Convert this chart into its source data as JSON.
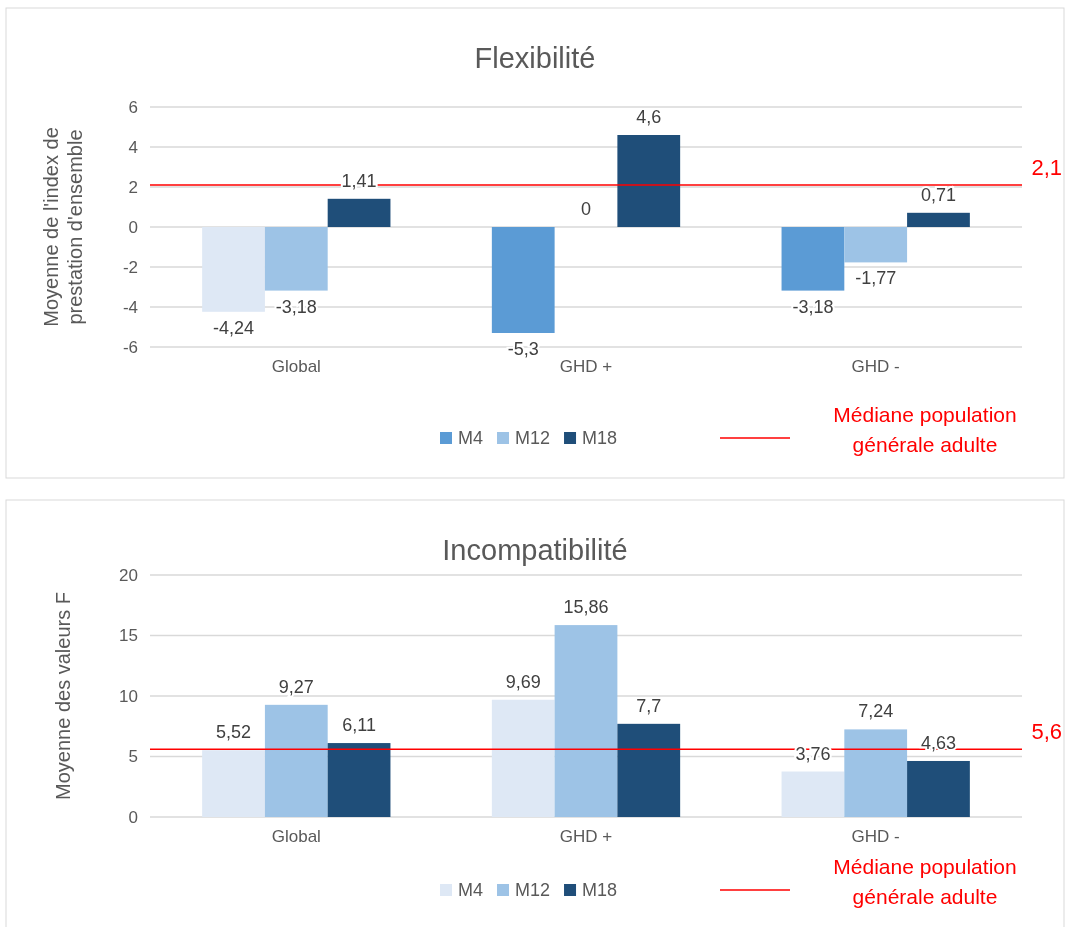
{
  "chart_data": [
    {
      "type": "bar",
      "title": "Flexibilité",
      "ylabel": "Moyenne  de l'index de prestation d'ensemble",
      "categories": [
        "Global",
        "GHD +",
        "GHD -"
      ],
      "series": [
        {
          "name": "M4",
          "color": "#5b9bd5",
          "colors": [
            "#dee8f5",
            "#5b9bd5",
            "#5b9bd5"
          ],
          "values": [
            -4.24,
            -5.3,
            -3.18
          ],
          "value_labels": [
            "-4,24",
            "-5,3",
            "-3,18"
          ]
        },
        {
          "name": "M12",
          "color": "#9dc3e6",
          "values": [
            -3.18,
            0,
            -1.77
          ],
          "value_labels": [
            "-3,18",
            "0",
            "-1,77"
          ]
        },
        {
          "name": "M18",
          "color": "#1f4e79",
          "values": [
            1.41,
            4.6,
            0.71
          ],
          "value_labels": [
            "1,41",
            "4,6",
            "0,71"
          ]
        }
      ],
      "ylim": [
        -6,
        6
      ],
      "yticks": [
        -6,
        -4,
        -2,
        0,
        2,
        4,
        6
      ],
      "grid": "y",
      "legend": "bottom",
      "ref_lines": [
        {
          "axis": "y",
          "value": 2.1,
          "label": "2,1",
          "color": "#ff0000"
        }
      ],
      "annotations": [
        "Médiane population générale adulte"
      ]
    },
    {
      "type": "bar",
      "title": "Incompatibilité",
      "ylabel": "Moyenne des valeurs F",
      "categories": [
        "Global",
        "GHD +",
        "GHD -"
      ],
      "series": [
        {
          "name": "M4",
          "color": "#dee8f5",
          "values": [
            5.52,
            9.69,
            3.76
          ],
          "value_labels": [
            "5,52",
            "9,69",
            "3,76"
          ]
        },
        {
          "name": "M12",
          "color": "#9dc3e6",
          "values": [
            9.27,
            15.86,
            7.24
          ],
          "value_labels": [
            "9,27",
            "15,86",
            "7,24"
          ]
        },
        {
          "name": "M18",
          "color": "#1f4e79",
          "values": [
            6.11,
            7.7,
            4.63
          ],
          "value_labels": [
            "6,11",
            "7,7",
            "4,63"
          ]
        }
      ],
      "ylim": [
        0,
        20
      ],
      "yticks": [
        0,
        5,
        10,
        15,
        20
      ],
      "grid": "y",
      "legend": "bottom",
      "ref_lines": [
        {
          "axis": "y",
          "value": 5.6,
          "label": "5,6",
          "color": "#ff0000"
        }
      ],
      "annotations": [
        "Médiane population générale adulte"
      ]
    }
  ]
}
